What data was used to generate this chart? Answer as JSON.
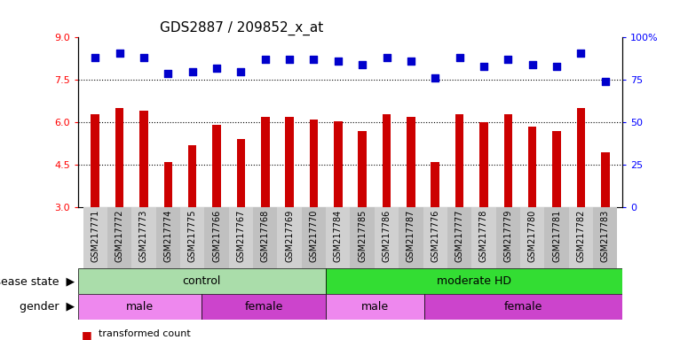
{
  "title": "GDS2887 / 209852_x_at",
  "samples": [
    "GSM217771",
    "GSM217772",
    "GSM217773",
    "GSM217774",
    "GSM217775",
    "GSM217766",
    "GSM217767",
    "GSM217768",
    "GSM217769",
    "GSM217770",
    "GSM217784",
    "GSM217785",
    "GSM217786",
    "GSM217787",
    "GSM217776",
    "GSM217777",
    "GSM217778",
    "GSM217779",
    "GSM217780",
    "GSM217781",
    "GSM217782",
    "GSM217783"
  ],
  "transformed_count": [
    6.3,
    6.5,
    6.4,
    4.6,
    5.2,
    5.9,
    5.4,
    6.2,
    6.2,
    6.1,
    6.05,
    5.7,
    6.3,
    6.2,
    4.6,
    6.3,
    6.0,
    6.3,
    5.85,
    5.7,
    6.5,
    4.95
  ],
  "percentile_rank": [
    88,
    91,
    88,
    79,
    80,
    82,
    80,
    87,
    87,
    87,
    86,
    84,
    88,
    86,
    76,
    88,
    83,
    87,
    84,
    83,
    91,
    74
  ],
  "ylim_left": [
    3,
    9
  ],
  "ylim_right": [
    0,
    100
  ],
  "yticks_left": [
    3,
    4.5,
    6,
    7.5,
    9
  ],
  "yticks_right": [
    0,
    25,
    50,
    75,
    100
  ],
  "ytick_labels_right": [
    "0",
    "25",
    "50",
    "75",
    "100%"
  ],
  "bar_color": "#cc0000",
  "dot_color": "#0000cc",
  "grid_lines": [
    4.5,
    6.0,
    7.5
  ],
  "disease_state_groups": [
    {
      "label": "control",
      "start": 0,
      "end": 10,
      "color": "#aaddaa"
    },
    {
      "label": "moderate HD",
      "start": 10,
      "end": 22,
      "color": "#33dd33"
    }
  ],
  "gender_groups": [
    {
      "label": "male",
      "start": 0,
      "end": 5,
      "color": "#ee88ee"
    },
    {
      "label": "female",
      "start": 5,
      "end": 10,
      "color": "#cc44cc"
    },
    {
      "label": "male",
      "start": 10,
      "end": 14,
      "color": "#ee88ee"
    },
    {
      "label": "female",
      "start": 14,
      "end": 22,
      "color": "#cc44cc"
    }
  ],
  "bg_color": "#ffffff",
  "plot_bg": "#ffffff",
  "bar_width": 0.35,
  "dot_size": 40,
  "label_fontsize": 9,
  "tick_fontsize": 8,
  "title_fontsize": 11,
  "xtick_fontsize": 7,
  "annot_fontsize": 9
}
